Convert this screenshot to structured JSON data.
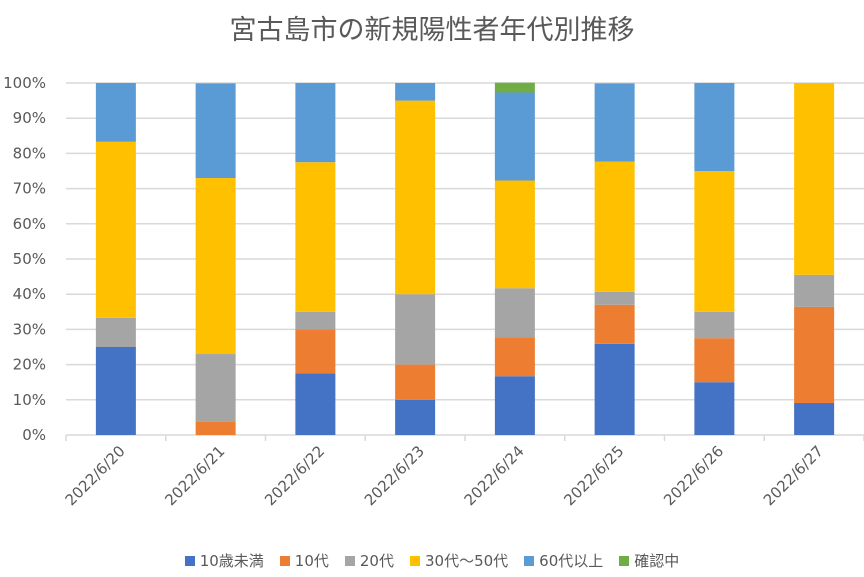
{
  "chart_data": {
    "type": "bar",
    "stacked": "percent",
    "title": "宮古島市の新規陽性者年代別推移",
    "xlabel": "",
    "ylabel": "",
    "ylim": [
      0,
      100
    ],
    "yticks": [
      "0%",
      "10%",
      "20%",
      "30%",
      "40%",
      "50%",
      "60%",
      "70%",
      "80%",
      "90%",
      "100%"
    ],
    "grid": true,
    "legend_position": "bottom",
    "categories": [
      "2022/6/20",
      "2022/6/21",
      "2022/6/22",
      "2022/6/23",
      "2022/6/24",
      "2022/6/25",
      "2022/6/26",
      "2022/6/27"
    ],
    "series": [
      {
        "name": "10歳未満",
        "color": "#4472C4",
        "values": [
          25,
          0,
          17.5,
          10,
          16.7,
          25.9,
          15,
          9.1
        ]
      },
      {
        "name": "10代",
        "color": "#ED7D31",
        "values": [
          0,
          3.8,
          12.5,
          10,
          11.1,
          11.1,
          12.5,
          27.3
        ]
      },
      {
        "name": "20代",
        "color": "#A5A5A5",
        "values": [
          8.3,
          19.2,
          5,
          20,
          13.9,
          3.7,
          7.5,
          9.1
        ]
      },
      {
        "name": "30代～50代",
        "color": "#FFC000",
        "values": [
          50,
          50,
          42.5,
          55,
          30.6,
          37,
          40,
          54.5
        ]
      },
      {
        "name": "60代以上",
        "color": "#5B9BD5",
        "values": [
          16.7,
          26.9,
          22.5,
          5,
          25,
          22.2,
          25,
          0
        ]
      },
      {
        "name": "確認中",
        "color": "#70AD47",
        "values": [
          0,
          0,
          0,
          0,
          2.8,
          0,
          0,
          0
        ]
      }
    ]
  }
}
